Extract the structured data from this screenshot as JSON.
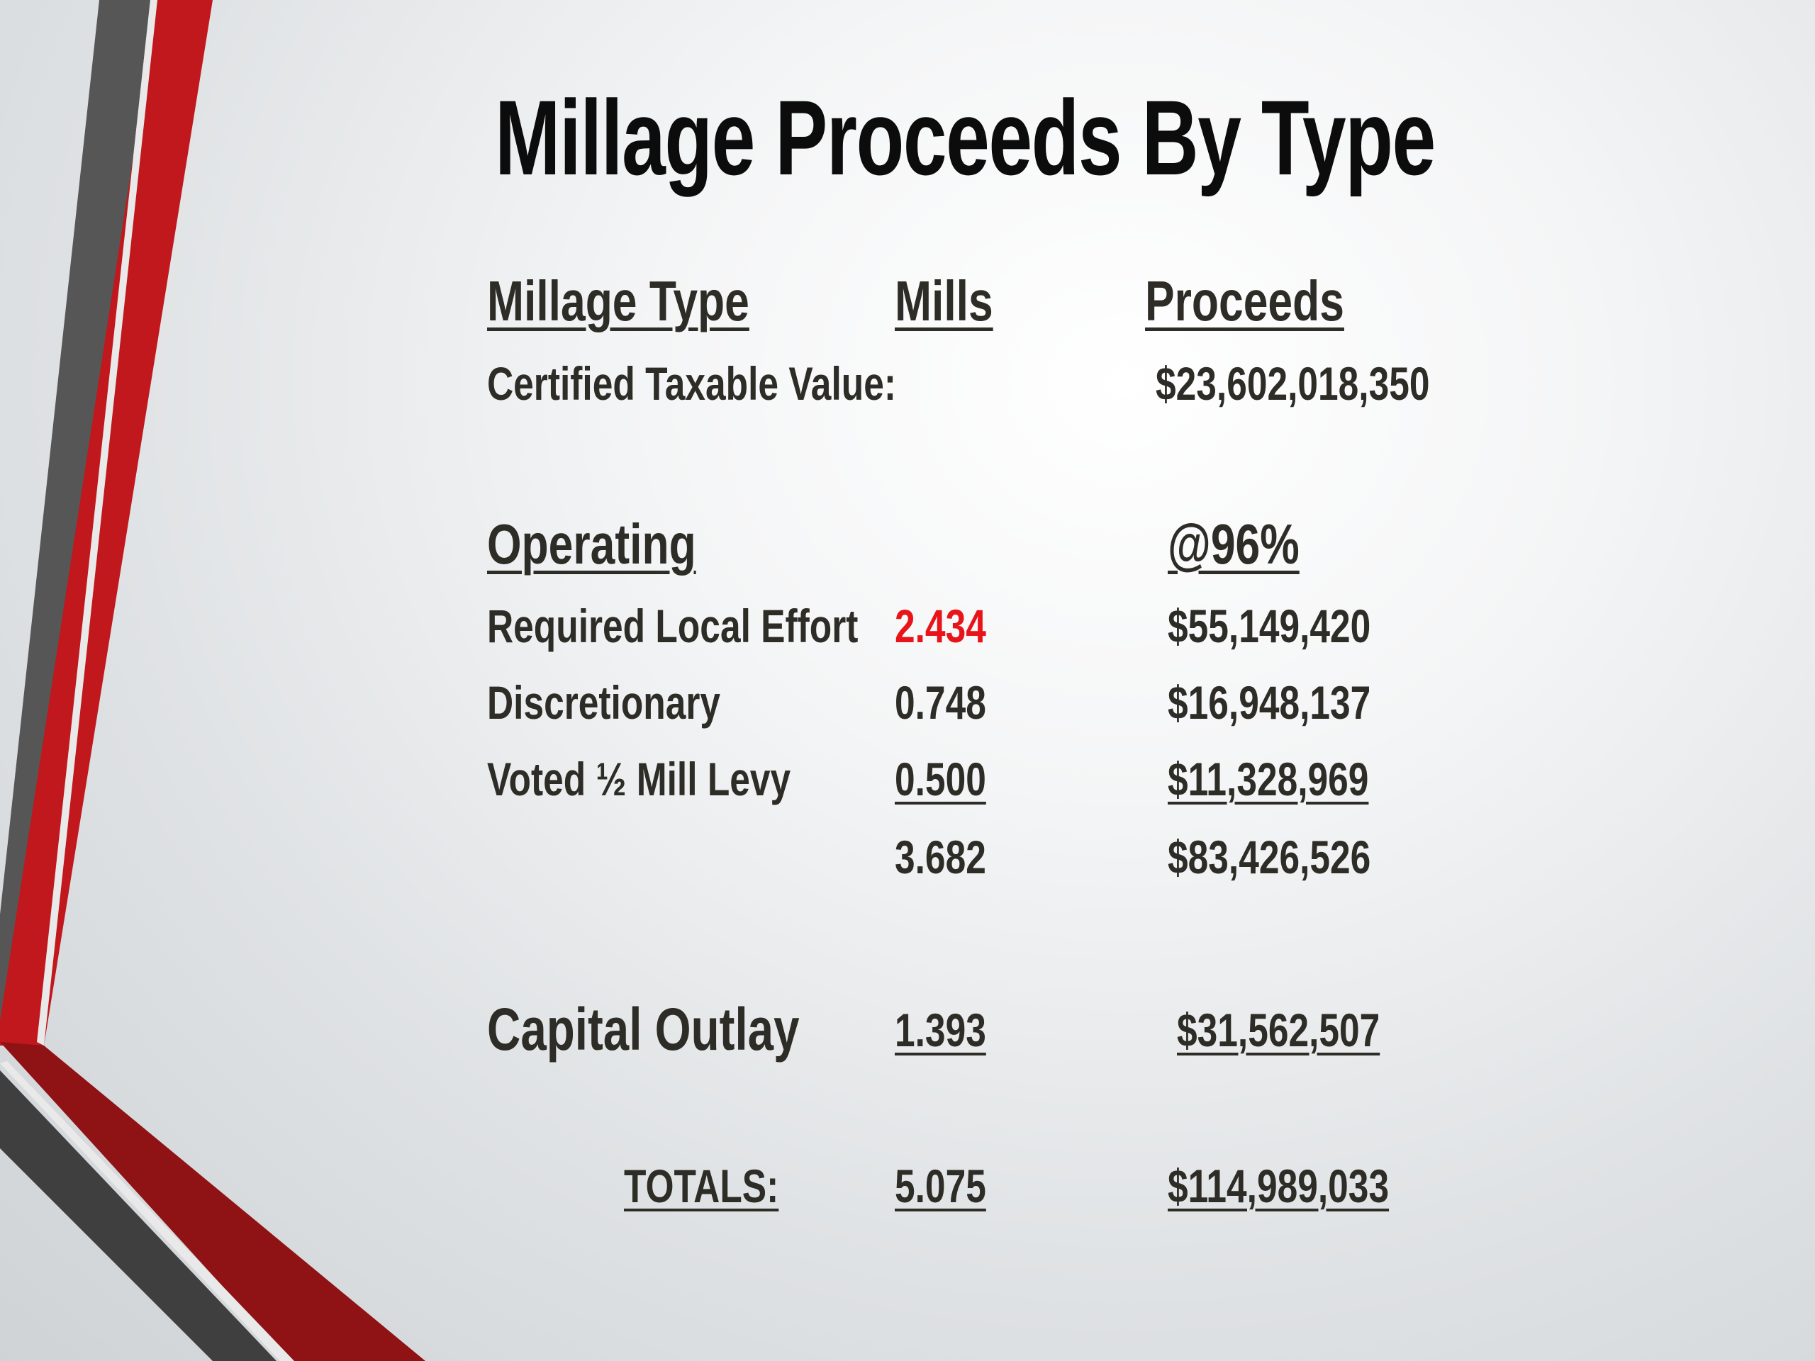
{
  "title": "Millage Proceeds By Type",
  "headers": {
    "type": "Millage Type",
    "mills": "Mills",
    "proceeds": "Proceeds"
  },
  "certified": {
    "label": "Certified Taxable Value:",
    "value": "$23,602,018,350"
  },
  "operating": {
    "label": "Operating",
    "rate_label": "@96%",
    "rows": [
      {
        "type": "Required Local Effort",
        "mills": "2.434",
        "proceeds": "$55,149,420"
      },
      {
        "type": "Discretionary",
        "mills": "0.748",
        "proceeds": "$16,948,137"
      },
      {
        "type": "Voted ½ Mill Levy",
        "mills": "0.500",
        "proceeds": "$11,328,969"
      }
    ],
    "subtotal": {
      "mills": "3.682",
      "proceeds": "$83,426,526"
    }
  },
  "capital_outlay": {
    "label": "Capital Outlay",
    "mills": "1.393",
    "proceeds": "$31,562,507"
  },
  "totals": {
    "label": "TOTALS:",
    "mills": "5.075",
    "proceeds": "$114,989,033"
  },
  "colors": {
    "accent_red": "#c0181c",
    "accent_gray": "#4f4f4f",
    "highlight_red": "#e8141a"
  }
}
